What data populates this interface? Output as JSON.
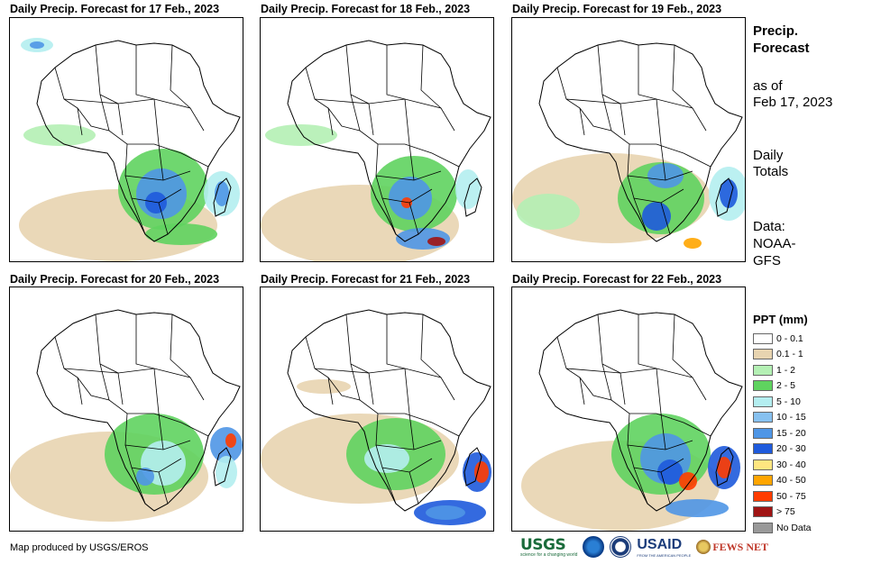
{
  "panels": [
    {
      "title": "Daily Precip. Forecast for 17 Feb., 2023"
    },
    {
      "title": "Daily Precip. Forecast for 18 Feb., 2023"
    },
    {
      "title": "Daily Precip. Forecast for 19 Feb., 2023"
    },
    {
      "title": "Daily Precip. Forecast for 20 Feb., 2023"
    },
    {
      "title": "Daily Precip. Forecast for 21 Feb., 2023"
    },
    {
      "title": "Daily Precip. Forecast for 22 Feb., 2023"
    }
  ],
  "sidebar": {
    "title_line1": "Precip.",
    "title_line2": "Forecast",
    "asof_line1": "as of",
    "asof_line2": "Feb 17, 2023",
    "totals_line1": "Daily",
    "totals_line2": "Totals",
    "data_line1": "Data:",
    "data_line2": "NOAA-",
    "data_line3": "GFS"
  },
  "legend": {
    "title": "PPT (mm)",
    "items": [
      {
        "label": "0 - 0.1",
        "color": "#ffffff"
      },
      {
        "label": "0.1 - 1",
        "color": "#e8d4b0"
      },
      {
        "label": "1 - 2",
        "color": "#b4f0b4"
      },
      {
        "label": "2 - 5",
        "color": "#5fd35f"
      },
      {
        "label": "5 - 10",
        "color": "#b4eef0"
      },
      {
        "label": "10 - 15",
        "color": "#87c1f0"
      },
      {
        "label": "15 - 20",
        "color": "#4f96e6"
      },
      {
        "label": "20 - 30",
        "color": "#1e5adc"
      },
      {
        "label": "30 - 40",
        "color": "#ffe680"
      },
      {
        "label": "40 - 50",
        "color": "#ffa500"
      },
      {
        "label": "50 - 75",
        "color": "#ff3c00"
      },
      {
        "label": "> 75",
        "color": "#a01414"
      },
      {
        "label": "No Data",
        "color": "#999999"
      }
    ]
  },
  "credit": "Map produced by USGS/EROS",
  "logos": {
    "usgs": "USGS",
    "usgs_tagline": "science for a changing world",
    "usaid": "USAID",
    "usaid_tagline": "FROM THE AMERICAN PEOPLE",
    "fews": "FEWS NET"
  }
}
